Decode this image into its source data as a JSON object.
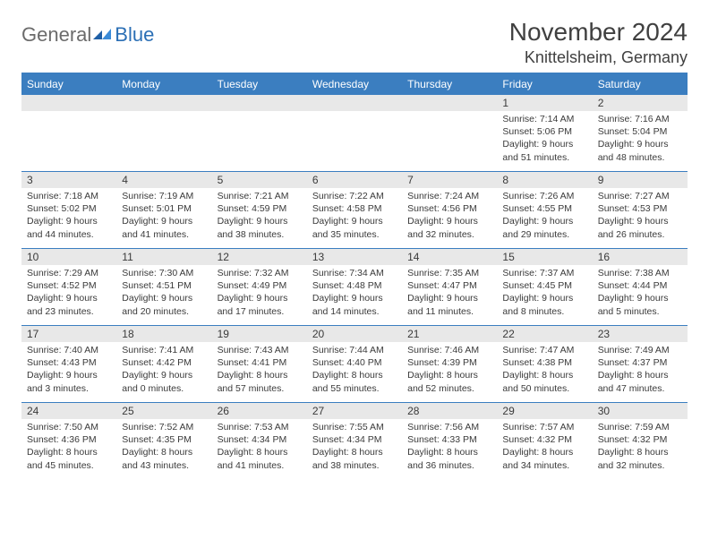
{
  "logo": {
    "part1": "General",
    "part2": "Blue"
  },
  "title": "November 2024",
  "location": "Knittelsheim, Germany",
  "colors": {
    "header_bg": "#3b7ec0",
    "header_text": "#ffffff",
    "daynum_bg": "#e8e8e8",
    "text": "#3a3a3a",
    "logo_gray": "#6b6b6b",
    "logo_blue": "#2b6fb5",
    "border": "#3b7ec0",
    "page_bg": "#ffffff"
  },
  "typography": {
    "title_fontsize": 28,
    "location_fontsize": 18,
    "header_fontsize": 12,
    "daynum_fontsize": 12,
    "cell_fontsize": 10.5
  },
  "weekdays": [
    "Sunday",
    "Monday",
    "Tuesday",
    "Wednesday",
    "Thursday",
    "Friday",
    "Saturday"
  ],
  "weeks": [
    [
      null,
      null,
      null,
      null,
      null,
      {
        "n": "1",
        "sunrise": "Sunrise: 7:14 AM",
        "sunset": "Sunset: 5:06 PM",
        "daylight": "Daylight: 9 hours and 51 minutes."
      },
      {
        "n": "2",
        "sunrise": "Sunrise: 7:16 AM",
        "sunset": "Sunset: 5:04 PM",
        "daylight": "Daylight: 9 hours and 48 minutes."
      }
    ],
    [
      {
        "n": "3",
        "sunrise": "Sunrise: 7:18 AM",
        "sunset": "Sunset: 5:02 PM",
        "daylight": "Daylight: 9 hours and 44 minutes."
      },
      {
        "n": "4",
        "sunrise": "Sunrise: 7:19 AM",
        "sunset": "Sunset: 5:01 PM",
        "daylight": "Daylight: 9 hours and 41 minutes."
      },
      {
        "n": "5",
        "sunrise": "Sunrise: 7:21 AM",
        "sunset": "Sunset: 4:59 PM",
        "daylight": "Daylight: 9 hours and 38 minutes."
      },
      {
        "n": "6",
        "sunrise": "Sunrise: 7:22 AM",
        "sunset": "Sunset: 4:58 PM",
        "daylight": "Daylight: 9 hours and 35 minutes."
      },
      {
        "n": "7",
        "sunrise": "Sunrise: 7:24 AM",
        "sunset": "Sunset: 4:56 PM",
        "daylight": "Daylight: 9 hours and 32 minutes."
      },
      {
        "n": "8",
        "sunrise": "Sunrise: 7:26 AM",
        "sunset": "Sunset: 4:55 PM",
        "daylight": "Daylight: 9 hours and 29 minutes."
      },
      {
        "n": "9",
        "sunrise": "Sunrise: 7:27 AM",
        "sunset": "Sunset: 4:53 PM",
        "daylight": "Daylight: 9 hours and 26 minutes."
      }
    ],
    [
      {
        "n": "10",
        "sunrise": "Sunrise: 7:29 AM",
        "sunset": "Sunset: 4:52 PM",
        "daylight": "Daylight: 9 hours and 23 minutes."
      },
      {
        "n": "11",
        "sunrise": "Sunrise: 7:30 AM",
        "sunset": "Sunset: 4:51 PM",
        "daylight": "Daylight: 9 hours and 20 minutes."
      },
      {
        "n": "12",
        "sunrise": "Sunrise: 7:32 AM",
        "sunset": "Sunset: 4:49 PM",
        "daylight": "Daylight: 9 hours and 17 minutes."
      },
      {
        "n": "13",
        "sunrise": "Sunrise: 7:34 AM",
        "sunset": "Sunset: 4:48 PM",
        "daylight": "Daylight: 9 hours and 14 minutes."
      },
      {
        "n": "14",
        "sunrise": "Sunrise: 7:35 AM",
        "sunset": "Sunset: 4:47 PM",
        "daylight": "Daylight: 9 hours and 11 minutes."
      },
      {
        "n": "15",
        "sunrise": "Sunrise: 7:37 AM",
        "sunset": "Sunset: 4:45 PM",
        "daylight": "Daylight: 9 hours and 8 minutes."
      },
      {
        "n": "16",
        "sunrise": "Sunrise: 7:38 AM",
        "sunset": "Sunset: 4:44 PM",
        "daylight": "Daylight: 9 hours and 5 minutes."
      }
    ],
    [
      {
        "n": "17",
        "sunrise": "Sunrise: 7:40 AM",
        "sunset": "Sunset: 4:43 PM",
        "daylight": "Daylight: 9 hours and 3 minutes."
      },
      {
        "n": "18",
        "sunrise": "Sunrise: 7:41 AM",
        "sunset": "Sunset: 4:42 PM",
        "daylight": "Daylight: 9 hours and 0 minutes."
      },
      {
        "n": "19",
        "sunrise": "Sunrise: 7:43 AM",
        "sunset": "Sunset: 4:41 PM",
        "daylight": "Daylight: 8 hours and 57 minutes."
      },
      {
        "n": "20",
        "sunrise": "Sunrise: 7:44 AM",
        "sunset": "Sunset: 4:40 PM",
        "daylight": "Daylight: 8 hours and 55 minutes."
      },
      {
        "n": "21",
        "sunrise": "Sunrise: 7:46 AM",
        "sunset": "Sunset: 4:39 PM",
        "daylight": "Daylight: 8 hours and 52 minutes."
      },
      {
        "n": "22",
        "sunrise": "Sunrise: 7:47 AM",
        "sunset": "Sunset: 4:38 PM",
        "daylight": "Daylight: 8 hours and 50 minutes."
      },
      {
        "n": "23",
        "sunrise": "Sunrise: 7:49 AM",
        "sunset": "Sunset: 4:37 PM",
        "daylight": "Daylight: 8 hours and 47 minutes."
      }
    ],
    [
      {
        "n": "24",
        "sunrise": "Sunrise: 7:50 AM",
        "sunset": "Sunset: 4:36 PM",
        "daylight": "Daylight: 8 hours and 45 minutes."
      },
      {
        "n": "25",
        "sunrise": "Sunrise: 7:52 AM",
        "sunset": "Sunset: 4:35 PM",
        "daylight": "Daylight: 8 hours and 43 minutes."
      },
      {
        "n": "26",
        "sunrise": "Sunrise: 7:53 AM",
        "sunset": "Sunset: 4:34 PM",
        "daylight": "Daylight: 8 hours and 41 minutes."
      },
      {
        "n": "27",
        "sunrise": "Sunrise: 7:55 AM",
        "sunset": "Sunset: 4:34 PM",
        "daylight": "Daylight: 8 hours and 38 minutes."
      },
      {
        "n": "28",
        "sunrise": "Sunrise: 7:56 AM",
        "sunset": "Sunset: 4:33 PM",
        "daylight": "Daylight: 8 hours and 36 minutes."
      },
      {
        "n": "29",
        "sunrise": "Sunrise: 7:57 AM",
        "sunset": "Sunset: 4:32 PM",
        "daylight": "Daylight: 8 hours and 34 minutes."
      },
      {
        "n": "30",
        "sunrise": "Sunrise: 7:59 AM",
        "sunset": "Sunset: 4:32 PM",
        "daylight": "Daylight: 8 hours and 32 minutes."
      }
    ]
  ]
}
